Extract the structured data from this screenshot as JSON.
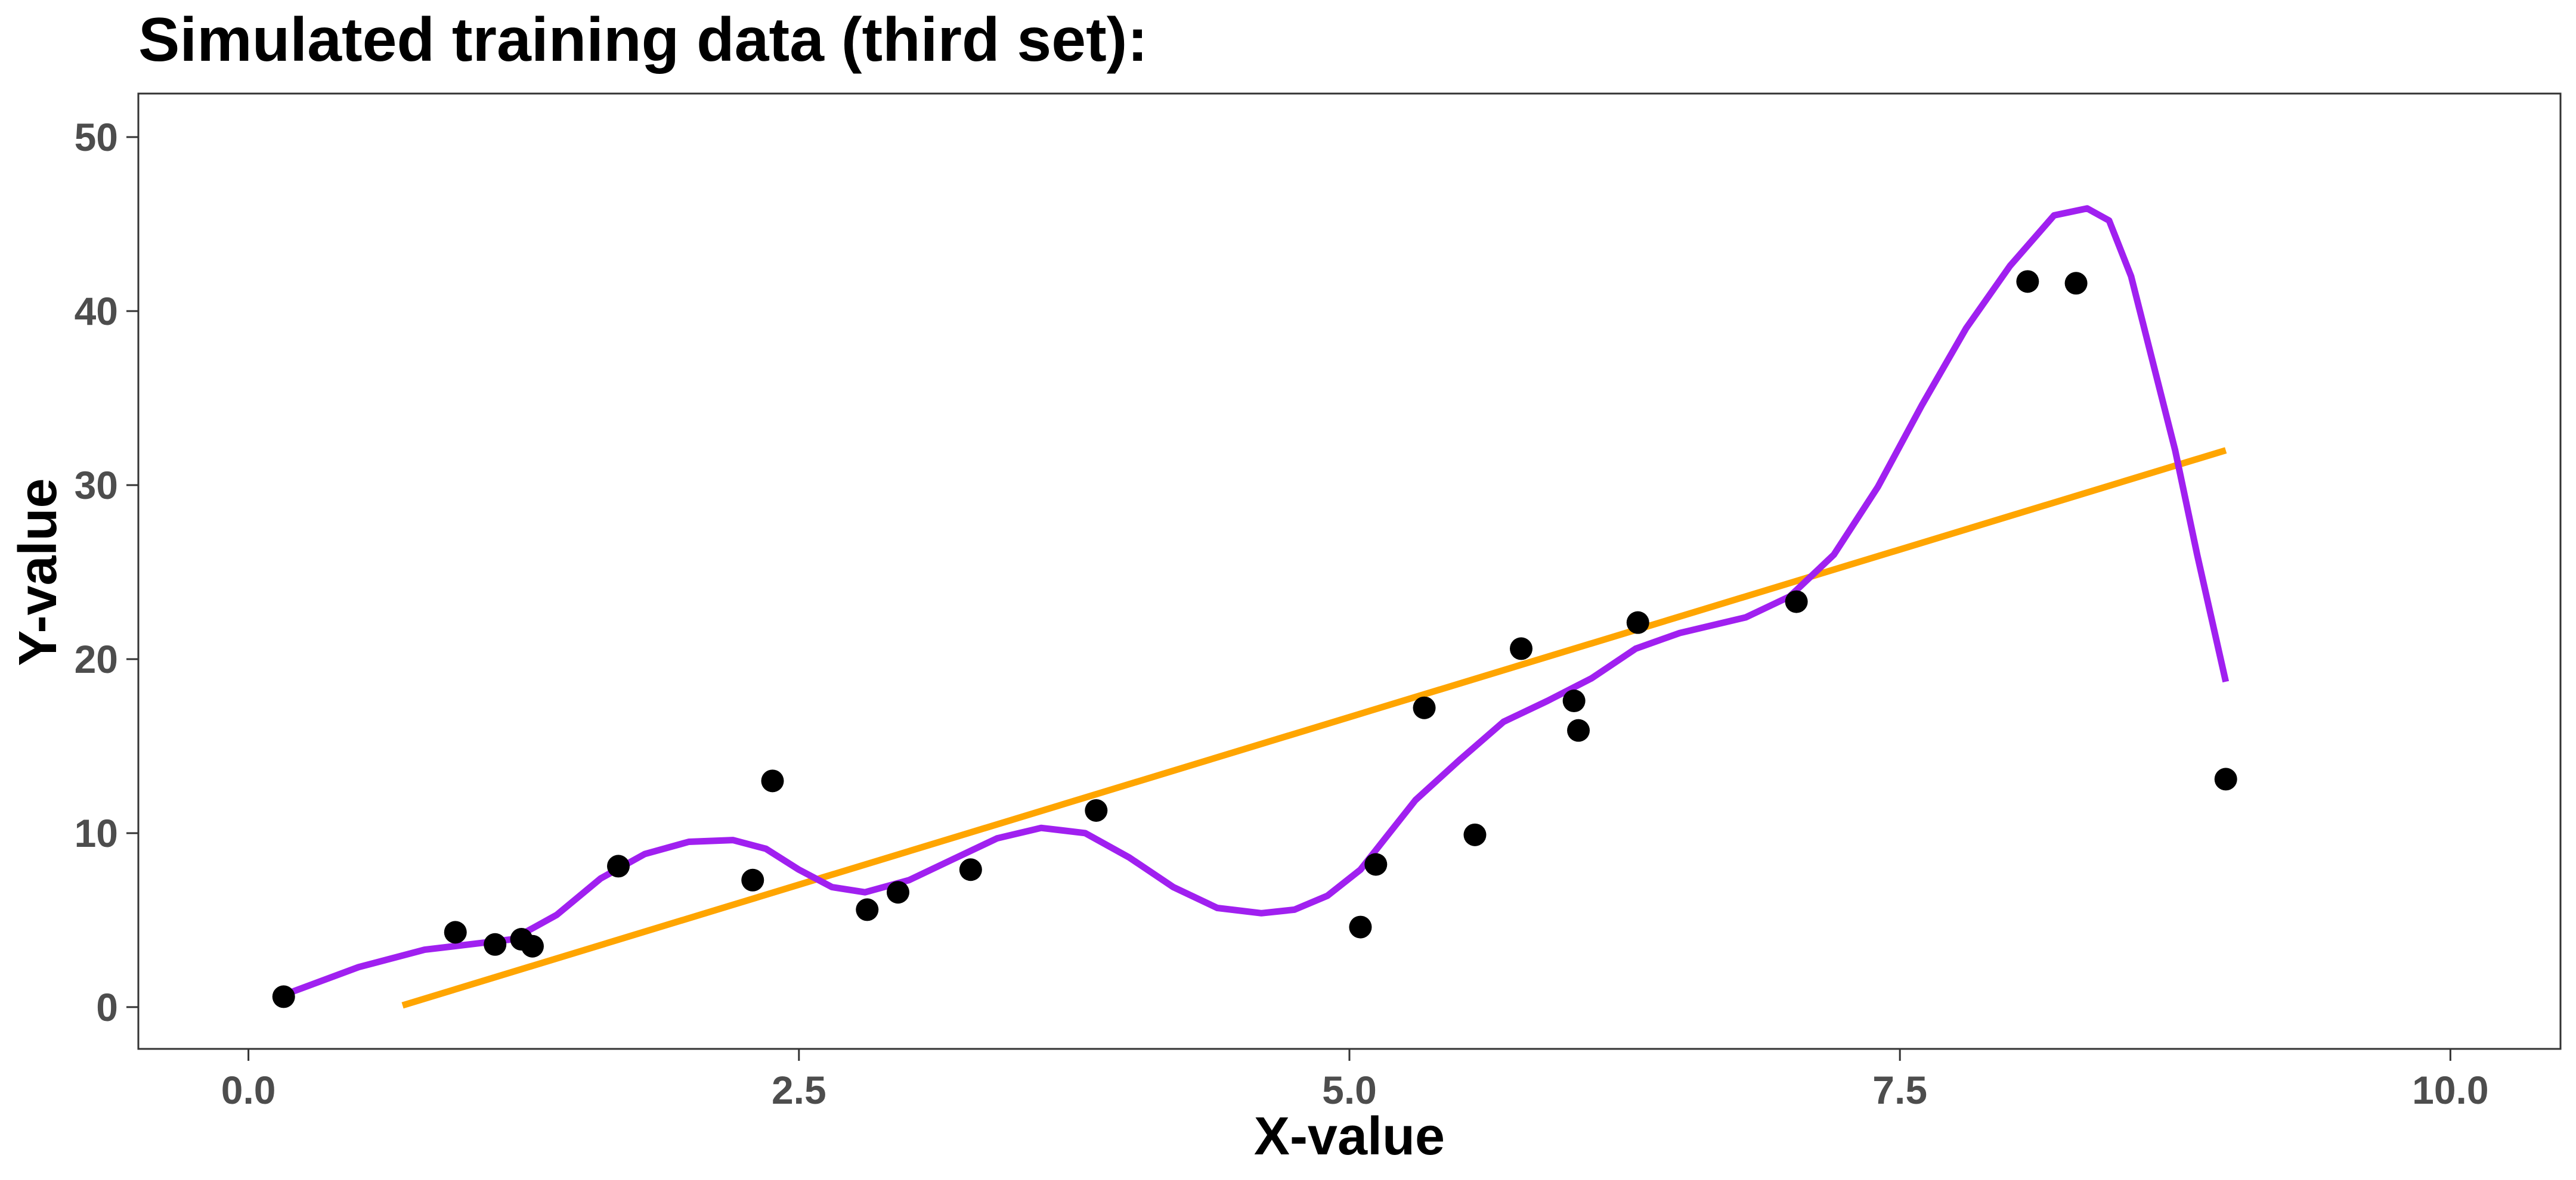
{
  "chart_data": {
    "type": "scatter",
    "title": "Simulated training data (third set):",
    "xlabel": "X-value",
    "ylabel": "Y-value",
    "xlim": [
      -0.5,
      10.5
    ],
    "ylim": [
      -2.4,
      52.5
    ],
    "x_ticks": [
      0.0,
      2.5,
      5.0,
      7.5,
      10.0
    ],
    "x_tick_labels": [
      "0.0",
      "2.5",
      "5.0",
      "7.5",
      "10.0"
    ],
    "y_ticks": [
      0,
      10,
      20,
      30,
      40,
      50
    ],
    "y_tick_labels": [
      "0",
      "10",
      "20",
      "30",
      "40",
      "50"
    ],
    "grid": false,
    "colors": {
      "points": "#000000",
      "linear_fit": "#FFA500",
      "flexible_fit": "#A020F0",
      "panel_border": "#333333",
      "tick_text": "#4d4d4d"
    },
    "points": [
      {
        "x": 0.16,
        "y": 0.6
      },
      {
        "x": 0.94,
        "y": 4.3
      },
      {
        "x": 1.12,
        "y": 3.6
      },
      {
        "x": 1.24,
        "y": 3.9
      },
      {
        "x": 1.29,
        "y": 3.5
      },
      {
        "x": 1.68,
        "y": 8.1
      },
      {
        "x": 2.29,
        "y": 7.3
      },
      {
        "x": 2.38,
        "y": 13.0
      },
      {
        "x": 2.81,
        "y": 5.6
      },
      {
        "x": 2.95,
        "y": 6.6
      },
      {
        "x": 3.28,
        "y": 7.9
      },
      {
        "x": 3.85,
        "y": 11.3
      },
      {
        "x": 5.05,
        "y": 4.6
      },
      {
        "x": 5.12,
        "y": 8.2
      },
      {
        "x": 5.34,
        "y": 17.2
      },
      {
        "x": 5.57,
        "y": 9.9
      },
      {
        "x": 5.78,
        "y": 20.6
      },
      {
        "x": 6.02,
        "y": 17.6
      },
      {
        "x": 6.04,
        "y": 15.9
      },
      {
        "x": 6.31,
        "y": 22.1
      },
      {
        "x": 7.03,
        "y": 23.3
      },
      {
        "x": 8.08,
        "y": 41.7
      },
      {
        "x": 8.3,
        "y": 41.6
      },
      {
        "x": 8.98,
        "y": 13.1
      }
    ],
    "series": [
      {
        "x": [
          0.7,
          8.98
        ],
        "y": [
          0.1,
          32.0
        ]
      },
      {
        "x": [
          0.16,
          0.5,
          0.8,
          1.0,
          1.2,
          1.4,
          1.6,
          1.8,
          2.0,
          2.2,
          2.35,
          2.5,
          2.65,
          2.8,
          3.0,
          3.2,
          3.4,
          3.6,
          3.8,
          4.0,
          4.2,
          4.4,
          4.6,
          4.75,
          4.9,
          5.05,
          5.15,
          5.3,
          5.5,
          5.7,
          5.9,
          6.1,
          6.3,
          6.5,
          6.8,
          7.0,
          7.2,
          7.4,
          7.6,
          7.8,
          8.0,
          8.2,
          8.35,
          8.45,
          8.55,
          8.65,
          8.75,
          8.85,
          8.98
        ],
        "y": [
          0.7,
          2.3,
          3.3,
          3.6,
          3.9,
          5.3,
          7.4,
          8.8,
          9.5,
          9.6,
          9.1,
          7.9,
          6.9,
          6.6,
          7.3,
          8.5,
          9.7,
          10.3,
          10.0,
          8.6,
          6.9,
          5.7,
          5.4,
          5.6,
          6.4,
          7.9,
          9.5,
          11.9,
          14.2,
          16.4,
          17.6,
          18.9,
          20.6,
          21.5,
          22.4,
          23.6,
          26.0,
          29.9,
          34.6,
          39.0,
          42.6,
          45.5,
          45.9,
          45.2,
          42.0,
          37.0,
          32.0,
          26.0,
          18.7
        ]
      }
    ]
  }
}
